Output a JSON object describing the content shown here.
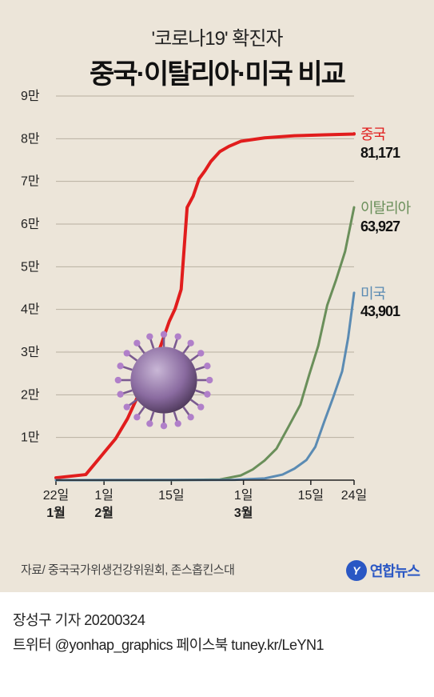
{
  "subtitle": "'코로나19' 확진자",
  "title": "중국·이탈리아·미국 비교",
  "source_prefix": "자료/ ",
  "source_text": "중국국가위생건강위원회, 존스홉킨스대",
  "logo_text": "연합뉴스",
  "logo_glyph": "Y",
  "credit_line": "장성구 기자  20200324",
  "social_line": "트위터 @yonhap_graphics  페이스북 tuney.kr/LeYN1",
  "chart": {
    "type": "line",
    "background_color": "#ece5d9",
    "grid_color": "#b8b0a0",
    "axis_color": "#222222",
    "axis_fontsize": 16,
    "y": {
      "min": 0,
      "max": 90000,
      "ticks": [
        10000,
        20000,
        30000,
        40000,
        50000,
        60000,
        70000,
        80000,
        90000
      ],
      "tick_labels": [
        "1만",
        "2만",
        "3만",
        "4만",
        "5만",
        "6만",
        "7만",
        "8만",
        "9만"
      ]
    },
    "x": {
      "domain": [
        "2020-01-22",
        "2020-03-24"
      ],
      "ticks": [
        {
          "d": "2020-01-22",
          "top": "22일",
          "bottom": "1월"
        },
        {
          "d": "2020-02-01",
          "top": "1일",
          "bottom": "2월"
        },
        {
          "d": "2020-02-15",
          "top": "15일",
          "bottom": ""
        },
        {
          "d": "2020-03-01",
          "top": "1일",
          "bottom": "3월"
        },
        {
          "d": "2020-03-15",
          "top": "15일",
          "bottom": ""
        },
        {
          "d": "2020-03-24",
          "top": "24일",
          "bottom": ""
        }
      ]
    },
    "series": [
      {
        "name": "중국",
        "end_value": 81171,
        "end_label": "81,171",
        "color": "#e11d1d",
        "line_width": 4,
        "points": [
          [
            0,
            550
          ],
          [
            10,
            1300
          ],
          [
            20,
            9700
          ],
          [
            24,
            14400
          ],
          [
            28,
            20500
          ],
          [
            31,
            24500
          ],
          [
            35,
            31200
          ],
          [
            38,
            37200
          ],
          [
            40,
            40200
          ],
          [
            42,
            44700
          ],
          [
            44,
            63900
          ],
          [
            46,
            66500
          ],
          [
            48,
            70600
          ],
          [
            50,
            72500
          ],
          [
            52,
            74700
          ],
          [
            55,
            77000
          ],
          [
            58,
            78200
          ],
          [
            62,
            79400
          ],
          [
            70,
            80200
          ],
          [
            80,
            80700
          ],
          [
            90,
            80900
          ],
          [
            100,
            81100
          ],
          [
            100,
            81171
          ]
        ]
      },
      {
        "name": "이탈리아",
        "end_value": 63927,
        "end_label": "63,927",
        "color": "#6a8f5a",
        "line_width": 3,
        "points": [
          [
            0,
            0
          ],
          [
            40,
            20
          ],
          [
            55,
            150
          ],
          [
            62,
            1100
          ],
          [
            66,
            2500
          ],
          [
            70,
            4600
          ],
          [
            74,
            7400
          ],
          [
            78,
            12500
          ],
          [
            82,
            17700
          ],
          [
            85,
            24800
          ],
          [
            88,
            31500
          ],
          [
            91,
            41000
          ],
          [
            94,
            47000
          ],
          [
            97,
            53600
          ],
          [
            100,
            63927
          ]
        ]
      },
      {
        "name": "미국",
        "end_value": 43901,
        "end_label": "43,901",
        "color": "#5b8bb3",
        "line_width": 3,
        "points": [
          [
            0,
            0
          ],
          [
            60,
            60
          ],
          [
            70,
            400
          ],
          [
            76,
            1300
          ],
          [
            80,
            2700
          ],
          [
            84,
            4700
          ],
          [
            87,
            7800
          ],
          [
            90,
            13700
          ],
          [
            93,
            19400
          ],
          [
            96,
            25500
          ],
          [
            98,
            33300
          ],
          [
            100,
            43901
          ]
        ]
      }
    ]
  }
}
